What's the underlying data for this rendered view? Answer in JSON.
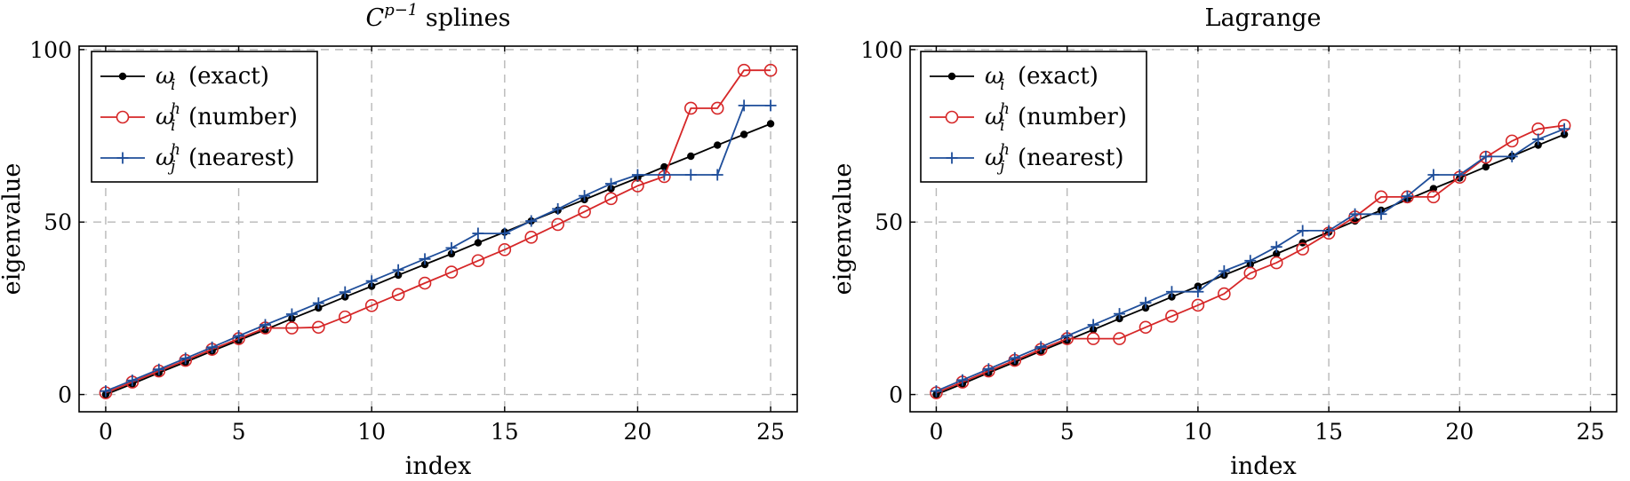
{
  "chart_data": [
    {
      "type": "line",
      "title_main": "C",
      "title_sup": "p−1",
      "title_rest": " splines",
      "xlabel": "index",
      "ylabel": "eigenvalue",
      "xlim": [
        -1,
        26
      ],
      "ylim": [
        -5,
        101
      ],
      "xticks": [
        0,
        5,
        10,
        15,
        20,
        25
      ],
      "yticks": [
        0,
        50,
        100
      ],
      "grid": true,
      "legend_position": "top-left",
      "series": [
        {
          "name": "ω_i (exact)",
          "legend_sym": "ω",
          "legend_sub": "i",
          "legend_sup": "",
          "legend_desc": "(exact)",
          "color": "#000000",
          "marker": "dot",
          "x": [
            0,
            1,
            2,
            3,
            4,
            5,
            6,
            7,
            8,
            9,
            10,
            11,
            12,
            13,
            14,
            15,
            16,
            17,
            18,
            19,
            20,
            21,
            22,
            23,
            24,
            25
          ],
          "y": [
            0,
            3.1,
            6.3,
            9.4,
            12.6,
            15.7,
            18.8,
            22.0,
            25.1,
            28.3,
            31.4,
            34.6,
            37.7,
            40.8,
            44.0,
            47.1,
            50.3,
            53.4,
            56.5,
            59.7,
            62.8,
            66.0,
            69.1,
            72.3,
            75.4,
            78.5
          ]
        },
        {
          "name": "ω_i^h (number)",
          "legend_sym": "ω",
          "legend_sub": "i",
          "legend_sup": "h",
          "legend_desc": "(number)",
          "color": "#d62728",
          "marker": "circle",
          "x": [
            0,
            1,
            2,
            3,
            4,
            5,
            6,
            7,
            8,
            9,
            10,
            11,
            12,
            13,
            14,
            15,
            16,
            17,
            18,
            19,
            20,
            21,
            22,
            23,
            24,
            25
          ],
          "y": [
            0.5,
            3.6,
            6.8,
            9.9,
            13.1,
            16.2,
            19.3,
            19.3,
            19.5,
            22.5,
            25.8,
            29.0,
            32.3,
            35.5,
            38.8,
            42.0,
            45.6,
            49.3,
            53.0,
            56.8,
            60.5,
            63.2,
            83.0,
            83.0,
            94.0,
            94.0
          ]
        },
        {
          "name": "ω_j^h (nearest)",
          "legend_sym": "ω",
          "legend_sub": "j",
          "legend_sup": "h",
          "legend_desc": "(nearest)",
          "color": "#1f4e9a",
          "marker": "plus",
          "x": [
            0,
            1,
            2,
            3,
            4,
            5,
            6,
            7,
            8,
            9,
            10,
            11,
            12,
            13,
            14,
            15,
            16,
            17,
            18,
            19,
            20,
            21,
            22,
            23,
            24,
            25
          ],
          "y": [
            1.0,
            4.1,
            7.3,
            10.5,
            13.7,
            17.0,
            20.2,
            23.3,
            26.5,
            29.7,
            32.9,
            36.1,
            39.3,
            42.5,
            46.7,
            46.7,
            50.3,
            53.8,
            57.6,
            61.1,
            63.7,
            63.7,
            63.7,
            63.7,
            83.8,
            83.8
          ]
        }
      ]
    },
    {
      "type": "line",
      "title_main": "Lagrange",
      "title_sup": "",
      "title_rest": "",
      "xlabel": "index",
      "ylabel": "eigenvalue",
      "xlim": [
        -1,
        26
      ],
      "ylim": [
        -5,
        101
      ],
      "xticks": [
        0,
        5,
        10,
        15,
        20,
        25
      ],
      "yticks": [
        0,
        50,
        100
      ],
      "grid": true,
      "legend_position": "top-left",
      "series": [
        {
          "name": "ω_i (exact)",
          "legend_sym": "ω",
          "legend_sub": "i",
          "legend_sup": "",
          "legend_desc": "(exact)",
          "color": "#000000",
          "marker": "dot",
          "x": [
            0,
            1,
            2,
            3,
            4,
            5,
            6,
            7,
            8,
            9,
            10,
            11,
            12,
            13,
            14,
            15,
            16,
            17,
            18,
            19,
            20,
            21,
            22,
            23,
            24
          ],
          "y": [
            0,
            3.1,
            6.3,
            9.4,
            12.6,
            15.7,
            18.8,
            22.0,
            25.1,
            28.3,
            31.4,
            34.6,
            37.7,
            40.8,
            44.0,
            47.1,
            50.3,
            53.4,
            56.5,
            59.7,
            62.8,
            66.0,
            69.1,
            72.3,
            75.4
          ]
        },
        {
          "name": "ω_i^h (number)",
          "legend_sym": "ω",
          "legend_sub": "i",
          "legend_sup": "h",
          "legend_desc": "(number)",
          "color": "#d62728",
          "marker": "circle",
          "x": [
            0,
            1,
            2,
            3,
            4,
            5,
            6,
            7,
            8,
            9,
            10,
            11,
            12,
            13,
            14,
            15,
            16,
            17,
            18,
            19,
            20,
            21,
            22,
            23,
            24
          ],
          "y": [
            0.5,
            3.6,
            6.8,
            9.9,
            13.1,
            16.2,
            16.2,
            16.2,
            19.5,
            22.7,
            25.9,
            29.2,
            35.2,
            38.2,
            42.2,
            46.8,
            51.5,
            57.3,
            57.3,
            57.3,
            63.0,
            68.8,
            73.5,
            77.0,
            78.0
          ]
        },
        {
          "name": "ω_j^h (nearest)",
          "legend_sym": "ω",
          "legend_sub": "j",
          "legend_sup": "h",
          "legend_desc": "(nearest)",
          "color": "#1f4e9a",
          "marker": "plus",
          "x": [
            0,
            1,
            2,
            3,
            4,
            5,
            6,
            7,
            8,
            9,
            10,
            11,
            12,
            13,
            14,
            15,
            16,
            17,
            18,
            19,
            20,
            21,
            22,
            23,
            24
          ],
          "y": [
            1.0,
            4.2,
            7.4,
            10.6,
            13.8,
            17.0,
            20.2,
            23.4,
            26.6,
            29.8,
            29.8,
            35.8,
            38.8,
            42.8,
            47.5,
            47.5,
            52.3,
            52.3,
            57.5,
            63.7,
            63.7,
            69.0,
            69.0,
            74.0,
            77.0
          ]
        }
      ]
    }
  ]
}
